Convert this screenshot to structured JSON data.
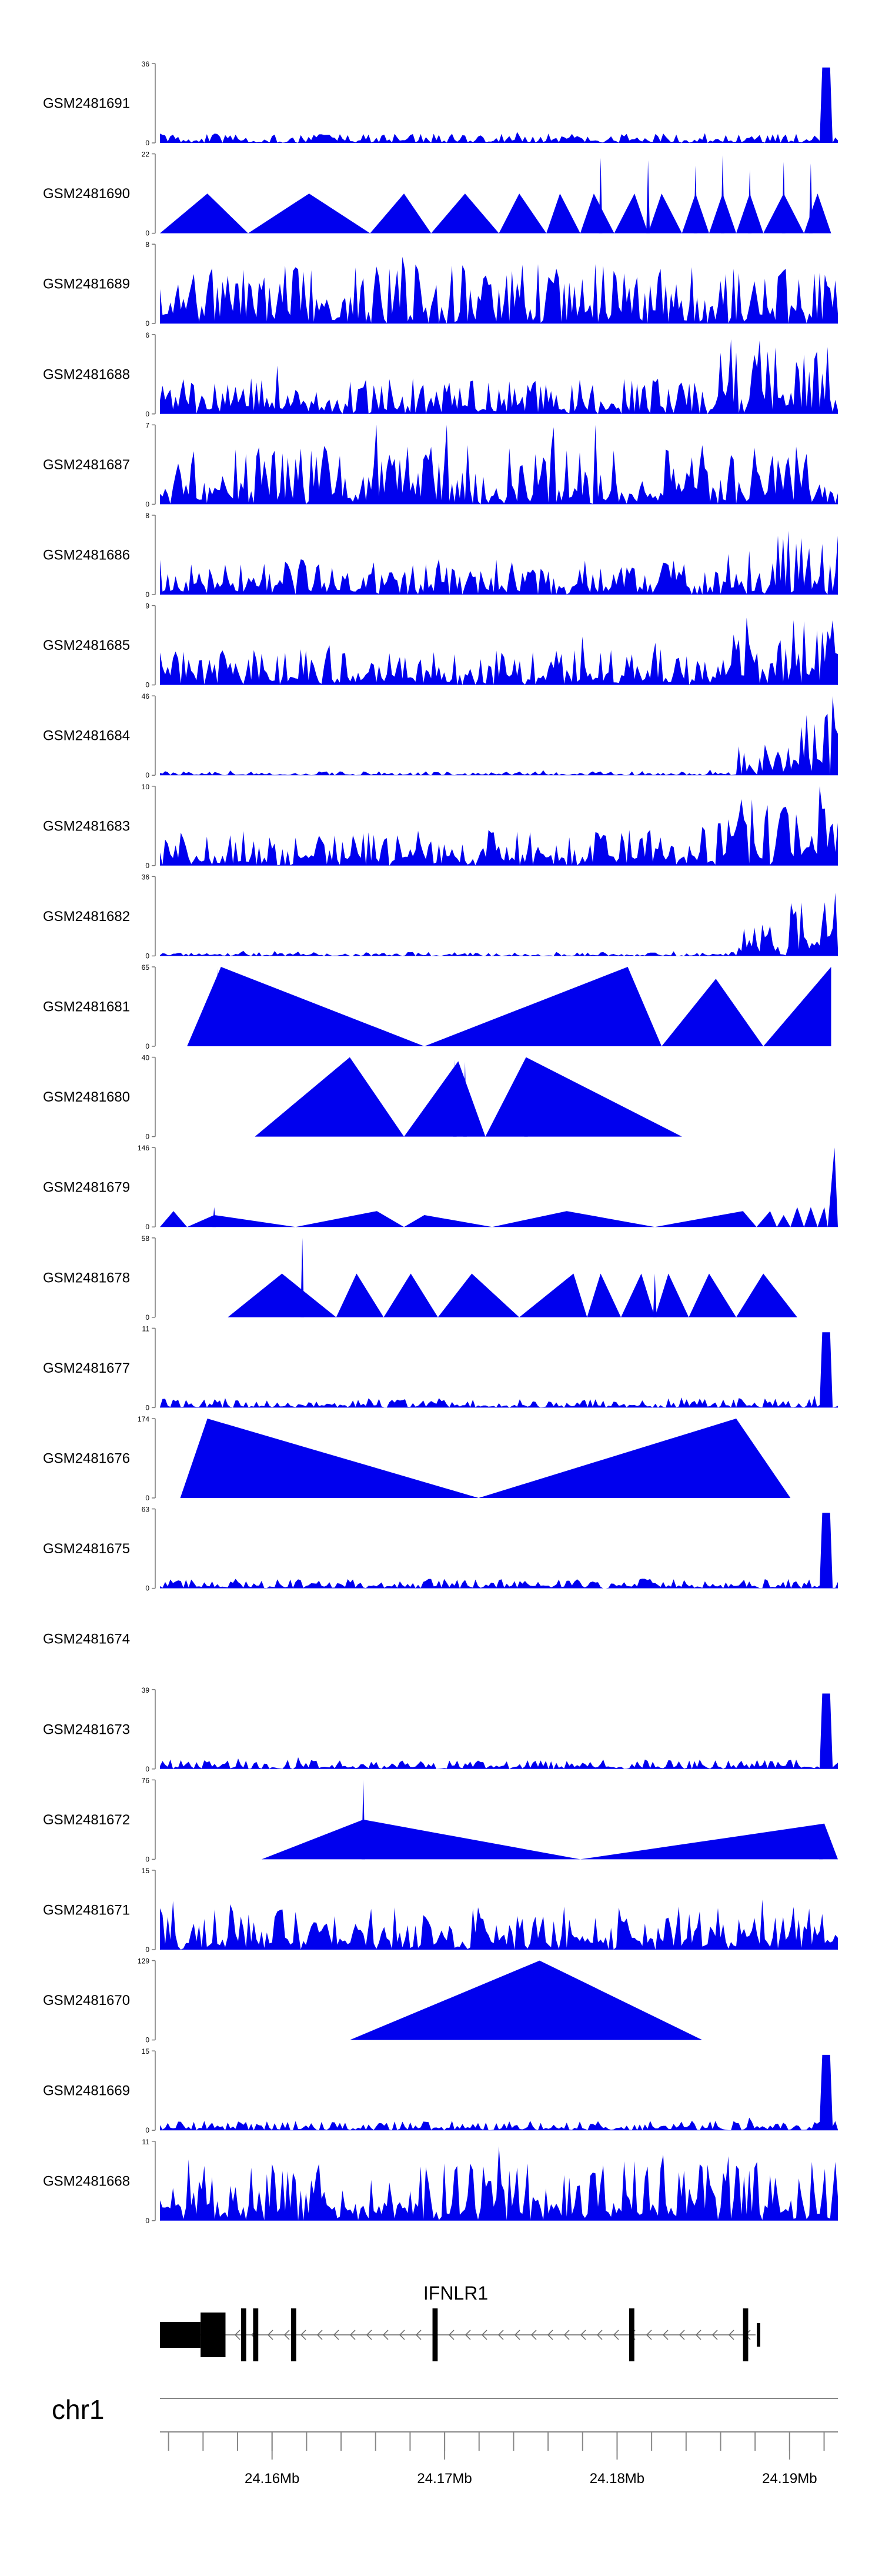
{
  "chart_data": {
    "type": "area",
    "title": "",
    "x_axis": {
      "chromosome": "chr1",
      "range_mb": [
        24.1535,
        24.1928
      ],
      "tick_labels": [
        "24.16Mb",
        "24.17Mb",
        "24.18Mb",
        "24.19Mb"
      ],
      "tick_values_mb": [
        24.16,
        24.17,
        24.18,
        24.19
      ]
    },
    "tracks": [
      {
        "name": "GSM2481691",
        "ymax": "36",
        "style": "dense",
        "profile": "sparse_peak"
      },
      {
        "name": "GSM2481690",
        "ymax": "22",
        "style": "triangles",
        "peaks": [
          [
            0.0,
            0.07,
            0.13,
            0.5
          ],
          [
            0.13,
            0.22,
            0.31,
            0.5
          ],
          [
            0.31,
            0.36,
            0.4,
            0.5
          ],
          [
            0.4,
            0.45,
            0.5,
            0.5
          ],
          [
            0.5,
            0.53,
            0.57,
            0.5
          ],
          [
            0.57,
            0.59,
            0.62,
            0.5
          ],
          [
            0.62,
            0.64,
            0.67,
            0.5
          ],
          [
            0.67,
            0.7,
            0.72,
            0.5
          ],
          [
            0.72,
            0.74,
            0.77,
            0.5
          ],
          [
            0.77,
            0.79,
            0.81,
            0.5
          ],
          [
            0.81,
            0.83,
            0.85,
            0.5
          ],
          [
            0.85,
            0.87,
            0.89,
            0.5
          ],
          [
            0.89,
            0.92,
            0.95,
            0.5
          ],
          [
            0.95,
            0.97,
            0.99,
            0.5
          ]
        ],
        "spikes": [
          [
            0.65,
            0.95
          ],
          [
            0.72,
            0.92
          ],
          [
            0.79,
            0.85
          ],
          [
            0.83,
            0.98
          ],
          [
            0.87,
            0.8
          ],
          [
            0.92,
            0.9
          ],
          [
            0.96,
            0.88
          ]
        ]
      },
      {
        "name": "GSM2481689",
        "ymax": "8",
        "style": "dense",
        "profile": "uniform_tall"
      },
      {
        "name": "GSM2481688",
        "ymax": "6",
        "style": "dense",
        "profile": "late_rise"
      },
      {
        "name": "GSM2481687",
        "ymax": "7",
        "style": "dense",
        "profile": "uniform_tall"
      },
      {
        "name": "GSM2481686",
        "ymax": "8",
        "style": "dense",
        "profile": "late_rise"
      },
      {
        "name": "GSM2481685",
        "ymax": "9",
        "style": "dense",
        "profile": "late_rise"
      },
      {
        "name": "GSM2481684",
        "ymax": "46",
        "style": "dense",
        "profile": "ramp_end"
      },
      {
        "name": "GSM2481683",
        "ymax": "10",
        "style": "dense",
        "profile": "late_rise"
      },
      {
        "name": "GSM2481682",
        "ymax": "36",
        "style": "dense",
        "profile": "ramp_end"
      },
      {
        "name": "GSM2481681",
        "ymax": "65",
        "style": "triangles",
        "peaks": [
          [
            0.04,
            0.09,
            0.39,
            1.0
          ],
          [
            0.39,
            0.69,
            0.74,
            1.0
          ],
          [
            0.74,
            0.82,
            0.89,
            0.85
          ],
          [
            0.89,
            0.99,
            0.99,
            1.0
          ]
        ],
        "spikes": [
          [
            0.085,
            0.98
          ]
        ]
      },
      {
        "name": "GSM2481680",
        "ymax": "40",
        "style": "triangles",
        "peaks": [
          [
            0.14,
            0.28,
            0.36,
            1.0
          ],
          [
            0.36,
            0.44,
            0.48,
            0.95
          ],
          [
            0.48,
            0.54,
            0.77,
            1.0
          ]
        ],
        "spikes": [
          [
            0.435,
            0.97
          ],
          [
            0.45,
            0.94
          ],
          [
            0.54,
            1.0
          ]
        ]
      },
      {
        "name": "GSM2481679",
        "ymax": "146",
        "style": "triangles",
        "peaks": [
          [
            0.0,
            0.02,
            0.04,
            0.2
          ],
          [
            0.04,
            0.08,
            0.2,
            0.15
          ],
          [
            0.2,
            0.32,
            0.36,
            0.2
          ],
          [
            0.36,
            0.39,
            0.49,
            0.15
          ],
          [
            0.49,
            0.6,
            0.73,
            0.2
          ],
          [
            0.73,
            0.86,
            0.88,
            0.2
          ],
          [
            0.88,
            0.9,
            0.91,
            0.2
          ],
          [
            0.91,
            0.92,
            0.93,
            0.15
          ],
          [
            0.93,
            0.94,
            0.95,
            0.25
          ],
          [
            0.95,
            0.96,
            0.97,
            0.25
          ],
          [
            0.97,
            0.98,
            0.985,
            0.25
          ],
          [
            0.985,
            0.995,
            1.0,
            1.0
          ]
        ],
        "spikes": [
          [
            0.08,
            0.25
          ]
        ]
      },
      {
        "name": "GSM2481678",
        "ymax": "58",
        "style": "triangles",
        "peaks": [
          [
            0.1,
            0.18,
            0.26,
            0.55
          ],
          [
            0.26,
            0.29,
            0.33,
            0.55
          ],
          [
            0.33,
            0.37,
            0.41,
            0.55
          ],
          [
            0.41,
            0.46,
            0.53,
            0.55
          ],
          [
            0.53,
            0.61,
            0.63,
            0.55
          ],
          [
            0.63,
            0.65,
            0.68,
            0.55
          ],
          [
            0.68,
            0.71,
            0.73,
            0.55
          ],
          [
            0.73,
            0.75,
            0.78,
            0.55
          ],
          [
            0.78,
            0.81,
            0.85,
            0.55
          ],
          [
            0.85,
            0.89,
            0.94,
            0.55
          ]
        ],
        "spikes": [
          [
            0.21,
            1.0
          ],
          [
            0.73,
            0.55
          ]
        ]
      },
      {
        "name": "GSM2481677",
        "ymax": "11",
        "style": "dense",
        "profile": "sparse_peak"
      },
      {
        "name": "GSM2481676",
        "ymax": "174",
        "style": "triangles",
        "peaks": [
          [
            0.03,
            0.07,
            0.47,
            1.0
          ],
          [
            0.47,
            0.85,
            0.93,
            1.0
          ]
        ]
      },
      {
        "name": "GSM2481675",
        "ymax": "63",
        "style": "dense",
        "profile": "sparse_peak"
      },
      {
        "name": "GSM2481674",
        "ymax": "",
        "style": "empty"
      },
      {
        "name": "GSM2481673",
        "ymax": "39",
        "style": "dense",
        "profile": "sparse_peak"
      },
      {
        "name": "GSM2481672",
        "ymax": "76",
        "style": "triangles",
        "peaks": [
          [
            0.15,
            0.3,
            0.62,
            0.5
          ],
          [
            0.62,
            0.98,
            1.0,
            0.45
          ]
        ],
        "spikes": [
          [
            0.3,
            1.0
          ],
          [
            0.975,
            0.45
          ]
        ]
      },
      {
        "name": "GSM2481671",
        "ymax": "15",
        "style": "dense",
        "profile": "uniform"
      },
      {
        "name": "GSM2481670",
        "ymax": "129",
        "style": "triangles",
        "peaks": [
          [
            0.28,
            0.56,
            0.8,
            1.0
          ]
        ]
      },
      {
        "name": "GSM2481669",
        "ymax": "15",
        "style": "dense",
        "profile": "sparse_peak"
      },
      {
        "name": "GSM2481668",
        "ymax": "11",
        "style": "dense",
        "profile": "uniform_tall"
      }
    ],
    "gene": {
      "name": "IFNLR1",
      "strand": "-",
      "exons_mb": [
        [
          24.1535,
          24.1573
        ],
        [
          24.1582,
          24.1585
        ],
        [
          24.1589,
          24.1592
        ],
        [
          24.1611,
          24.1614
        ],
        [
          24.1693,
          24.1696
        ],
        [
          24.1807,
          24.181
        ],
        [
          24.1873,
          24.1876
        ],
        [
          24.1881,
          24.1883
        ]
      ]
    }
  }
}
